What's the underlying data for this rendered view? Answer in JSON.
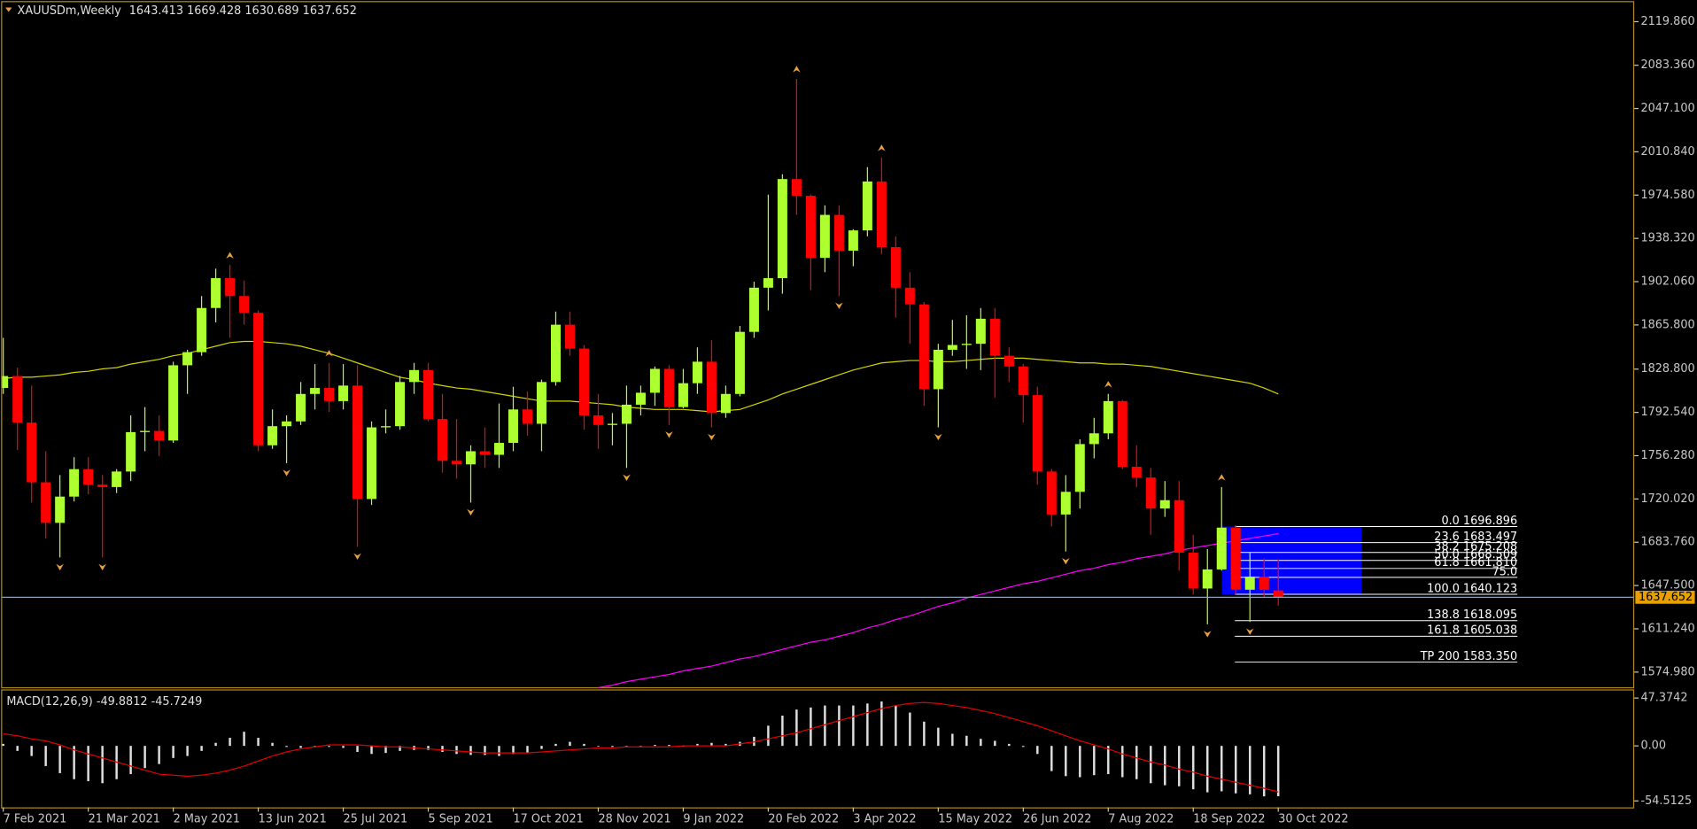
{
  "chart_data": [
    {
      "type": "candlestick",
      "title": "XAUUSDm,Weekly",
      "categories": [
        "7 Feb 2021",
        null,
        null,
        null,
        null,
        null,
        "21 Mar 2021",
        null,
        null,
        null,
        null,
        null,
        "2 May 2021",
        null,
        null,
        null,
        null,
        null,
        "13 Jun 2021",
        null,
        null,
        null,
        null,
        null,
        "25 Jul 2021",
        null,
        null,
        null,
        null,
        null,
        "5 Sep 2021",
        null,
        null,
        null,
        null,
        null,
        "17 Oct 2021",
        null,
        null,
        null,
        null,
        null,
        "28 Nov 2021",
        null,
        null,
        null,
        null,
        null,
        "9 Jan 2022",
        null,
        null,
        null,
        null,
        null,
        "20 Feb 2022",
        null,
        null,
        null,
        null,
        null,
        "3 Apr 2022",
        null,
        null,
        null,
        null,
        null,
        "15 May 2022",
        null,
        null,
        null,
        null,
        null,
        "26 Jun 2022",
        null,
        null,
        null,
        null,
        null,
        "7 Aug 2022",
        null,
        null,
        null,
        null,
        null,
        "18 Sep 2022",
        null,
        null,
        null,
        null,
        null,
        "30 Oct 2022"
      ],
      "open": [
        1813,
        1823,
        1784,
        1734,
        1700,
        1722,
        1745,
        1732,
        1730,
        1743,
        1776,
        1777,
        1769,
        1832,
        1843,
        1880,
        1905,
        1890,
        1876,
        1765,
        1781,
        1785,
        1808,
        1813,
        1802,
        1815,
        1720,
        1780,
        1781,
        1818,
        1828,
        1787,
        1752,
        1749,
        1760,
        1757,
        1767,
        1795,
        1783,
        1818,
        1866,
        1846,
        1790,
        1782,
        1783,
        1799,
        1809,
        1829,
        1797,
        1817,
        1835,
        1792,
        1808,
        1860,
        1897,
        1905,
        1988,
        1974,
        1922,
        1958,
        1928,
        1945,
        1986,
        1931,
        1897,
        1883,
        1812,
        1845,
        1849,
        1850,
        1871,
        1840,
        1831,
        1807,
        1743,
        1707,
        1726,
        1766,
        1775,
        1802,
        1747,
        1738,
        1712,
        1719,
        1675,
        1645,
        1661,
        1696,
        1644,
        1655,
        1643.413
      ],
      "high": [
        1855,
        1830,
        1815,
        1760,
        1740,
        1755,
        1755,
        1740,
        1745,
        1790,
        1797,
        1790,
        1835,
        1845,
        1890,
        1913,
        1916,
        1903,
        1878,
        1795,
        1790,
        1818,
        1833,
        1834,
        1833,
        1832,
        1785,
        1795,
        1823,
        1834,
        1834,
        1808,
        1787,
        1765,
        1780,
        1800,
        1814,
        1810,
        1820,
        1877,
        1877,
        1849,
        1808,
        1792,
        1815,
        1815,
        1831,
        1832,
        1829,
        1847,
        1853,
        1815,
        1865,
        1902,
        1975,
        1992,
        2072,
        1975,
        1966,
        1966,
        1946,
        1998,
        2006,
        1940,
        1910,
        1885,
        1850,
        1870,
        1874,
        1880,
        1880,
        1847,
        1833,
        1814,
        1745,
        1740,
        1770,
        1788,
        1808,
        1803,
        1765,
        1746,
        1735,
        1735,
        1690,
        1678,
        1730,
        1698,
        1675,
        1670,
        1669.428
      ],
      "low": [
        1808,
        1761,
        1717,
        1687,
        1671,
        1718,
        1724,
        1671,
        1725,
        1735,
        1760,
        1756,
        1767,
        1808,
        1840,
        1868,
        1855,
        1866,
        1760,
        1762,
        1750,
        1782,
        1795,
        1793,
        1795,
        1680,
        1715,
        1775,
        1778,
        1808,
        1785,
        1742,
        1737,
        1717,
        1746,
        1746,
        1760,
        1773,
        1760,
        1815,
        1840,
        1778,
        1762,
        1765,
        1746,
        1790,
        1798,
        1782,
        1796,
        1808,
        1780,
        1788,
        1806,
        1855,
        1878,
        1892,
        1958,
        1895,
        1910,
        1890,
        1915,
        1940,
        1925,
        1872,
        1850,
        1798,
        1780,
        1840,
        1829,
        1828,
        1805,
        1818,
        1784,
        1732,
        1697,
        1676,
        1712,
        1754,
        1770,
        1745,
        1730,
        1690,
        1705,
        1660,
        1640,
        1615,
        1660,
        1640,
        1617,
        1638,
        1630.689
      ],
      "close": [
        1823,
        1784,
        1734,
        1700,
        1722,
        1745,
        1732,
        1730,
        1743,
        1776,
        1777,
        1769,
        1832,
        1843,
        1880,
        1905,
        1890,
        1876,
        1765,
        1781,
        1785,
        1808,
        1813,
        1802,
        1815,
        1720,
        1780,
        1781,
        1818,
        1828,
        1787,
        1752,
        1749,
        1760,
        1757,
        1767,
        1795,
        1783,
        1818,
        1866,
        1846,
        1790,
        1782,
        1783,
        1799,
        1809,
        1829,
        1797,
        1817,
        1835,
        1792,
        1808,
        1860,
        1897,
        1905,
        1988,
        1974,
        1922,
        1958,
        1928,
        1945,
        1986,
        1931,
        1897,
        1883,
        1812,
        1845,
        1849,
        1850,
        1871,
        1840,
        1831,
        1807,
        1743,
        1707,
        1726,
        1766,
        1775,
        1802,
        1747,
        1738,
        1712,
        1719,
        1675,
        1645,
        1661,
        1696,
        1644,
        1655,
        1644,
        1637.652
      ],
      "up_color": "#adff2f",
      "down_color": "#ff0000",
      "overlays": [
        {
          "color": "#d4d400",
          "values": [
            1821,
            1822,
            1822,
            1823,
            1824,
            1826,
            1827,
            1829,
            1830,
            1833,
            1835,
            1837,
            1840,
            1842,
            1845,
            1848,
            1851,
            1852,
            1852,
            1851,
            1850,
            1848,
            1845,
            1842,
            1838,
            1834,
            1830,
            1826,
            1822,
            1820,
            1817,
            1815,
            1813,
            1812,
            1810,
            1808,
            1806,
            1804,
            1802,
            1802,
            1802,
            1801,
            1800,
            1799,
            1797,
            1796,
            1795,
            1795,
            1795,
            1794,
            1793,
            1794,
            1795,
            1799,
            1803,
            1808,
            1812,
            1816,
            1820,
            1824,
            1828,
            1831,
            1834,
            1835,
            1836,
            1836,
            1835,
            1835,
            1836,
            1837,
            1838,
            1838,
            1838,
            1837,
            1836,
            1835,
            1834,
            1834,
            1833,
            1833,
            1832,
            1831,
            1829,
            1827,
            1825,
            1823,
            1821,
            1819,
            1817,
            1813,
            1808
          ]
        },
        {
          "color": "#ff00ff",
          "values": [
            null,
            null,
            null,
            null,
            null,
            null,
            null,
            null,
            null,
            null,
            null,
            null,
            null,
            null,
            null,
            null,
            null,
            null,
            null,
            null,
            null,
            null,
            null,
            null,
            null,
            null,
            null,
            null,
            null,
            null,
            null,
            null,
            null,
            null,
            null,
            null,
            null,
            null,
            null,
            null,
            null,
            null,
            1562,
            1564,
            1567,
            1569,
            1571,
            1573,
            1576,
            1578,
            1580,
            1583,
            1586,
            1588,
            1591,
            1594,
            1597,
            1600,
            1602,
            1605,
            1608,
            1612,
            1615,
            1619,
            1622,
            1626,
            1630,
            1633,
            1637,
            1640,
            1643,
            1646,
            1649,
            1651,
            1654,
            1657,
            1660,
            1662,
            1665,
            1667,
            1670,
            1672,
            1674,
            1677,
            1679,
            1681,
            1683,
            1685,
            1687,
            1689,
            1691
          ]
        }
      ],
      "ylim": [
        1561.4,
        2136.2
      ],
      "yticks": [
        {
          "value": 2119.86,
          "label": "2119.860"
        },
        {
          "value": 2083.36,
          "label": "2083.360"
        },
        {
          "value": 2047.1,
          "label": "2047.100"
        },
        {
          "value": 2010.84,
          "label": "2010.840"
        },
        {
          "value": 1974.58,
          "label": "1974.580"
        },
        {
          "value": 1938.32,
          "label": "1938.320"
        },
        {
          "value": 1902.06,
          "label": "1902.060"
        },
        {
          "value": 1865.8,
          "label": "1865.800"
        },
        {
          "value": 1828.8,
          "label": "1828.800"
        },
        {
          "value": 1792.54,
          "label": "1792.540"
        },
        {
          "value": 1756.28,
          "label": "1756.280"
        },
        {
          "value": 1720.02,
          "label": "1720.020"
        },
        {
          "value": 1683.76,
          "label": "1683.760"
        },
        {
          "value": 1647.5,
          "label": "1647.500"
        },
        {
          "value": 1611.24,
          "label": "1611.240"
        },
        {
          "value": 1574.98,
          "label": "1574.980"
        }
      ],
      "last_price_color": "#e8a000",
      "fractal_color": "#e8a040",
      "fibonacci": {
        "color": "#ffffff",
        "zone_color": "#0000ff",
        "levels": [
          {
            "text": "0.0 1696.896",
            "price": 1696.896
          },
          {
            "text": "23.6 1683.497",
            "price": 1683.497
          },
          {
            "text": "38.2 1675.208",
            "price": 1675.208
          },
          {
            "text": "50.0 1668.509",
            "price": 1668.509
          },
          {
            "text": "61.8 1661.810",
            "price": 1661.81
          },
          {
            "text": "75.0",
            "price": 1654.316
          },
          {
            "text": "100.0 1640.123",
            "price": 1640.123
          },
          {
            "text": "138.8 1618.095",
            "price": 1618.095
          },
          {
            "text": "161.8 1605.038",
            "price": 1605.038
          },
          {
            "text": "TP 200 1583.350",
            "price": 1583.35
          }
        ]
      }
    },
    {
      "type": "macd",
      "title": "MACD(12,26,9)",
      "values": [
        2,
        -5,
        -10,
        -20,
        -27,
        -33,
        -35,
        -37,
        -33,
        -28,
        -22,
        -18,
        -12,
        -10,
        -5,
        3,
        8,
        14,
        8,
        3,
        -1,
        -2,
        -1,
        -1,
        -2,
        -6,
        -8,
        -7,
        -5,
        -4,
        -4,
        -6,
        -8,
        -9,
        -9,
        -10,
        -8,
        -7,
        -3,
        2,
        4,
        2,
        0,
        -1,
        -1,
        0,
        1,
        1,
        0,
        2,
        3,
        2,
        4,
        9,
        20,
        30,
        36,
        38,
        40,
        40,
        40,
        42,
        44,
        40,
        33,
        24,
        18,
        12,
        10,
        7,
        5,
        2,
        -1,
        -8,
        -25,
        -30,
        -31,
        -29,
        -28,
        -31,
        -33,
        -37,
        -39,
        -40,
        -43,
        -46,
        -45,
        -47,
        -48,
        -50,
        -49.8812
      ],
      "signal": [
        12,
        10,
        7,
        5,
        1,
        -4,
        -8,
        -12,
        -16,
        -20,
        -24,
        -28,
        -29,
        -30,
        -29,
        -27,
        -24,
        -20,
        -15,
        -10,
        -6,
        -3,
        -1,
        1,
        1,
        1,
        0,
        -1,
        -1,
        -2,
        -3,
        -4,
        -5,
        -6,
        -7,
        -7,
        -7,
        -7,
        -6,
        -5,
        -4,
        -3,
        -2,
        -2,
        -1,
        -1,
        -1,
        -1,
        0,
        0,
        0,
        0,
        2,
        4,
        7,
        10,
        13,
        17,
        21,
        25,
        29,
        33,
        37,
        40,
        42,
        43,
        42,
        40,
        38,
        35,
        32,
        28,
        24,
        20,
        15,
        10,
        5,
        1,
        -3,
        -8,
        -12,
        -16,
        -19,
        -23,
        -26,
        -30,
        -33,
        -36,
        -39,
        -42,
        -45.7249
      ],
      "color": "#e0e0e0",
      "signal_color": "#e00000",
      "ylim": [
        -60.9,
        54.9
      ],
      "yticks": [
        47.3742,
        {
          "value": 0,
          "label": "0.00"
        },
        -54.5125
      ]
    }
  ]
}
